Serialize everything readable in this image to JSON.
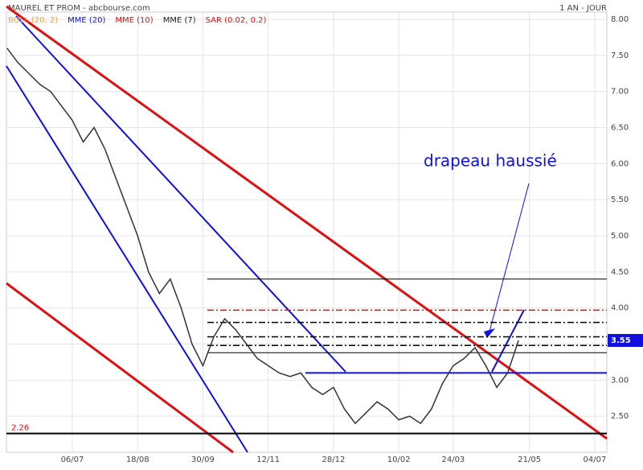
{
  "chart_data": {
    "type": "line",
    "title": "MAUREL ET PROM - abcbourse.com",
    "period": "1 AN - JOUR",
    "indicators": [
      {
        "name": "BOLL (20, 2)",
        "color": "#f0a030"
      },
      {
        "name": "MME (20)",
        "color": "#1010e0"
      },
      {
        "name": "MME (10)",
        "color": "#e01010"
      },
      {
        "name": "MME (7)",
        "color": "#222222"
      },
      {
        "name": "SAR (0.02, 0.2)",
        "color": "#e01010"
      }
    ],
    "categories": [
      null,
      null,
      null,
      null,
      null,
      null,
      "06/07",
      null,
      null,
      null,
      null,
      null,
      "18/08",
      null,
      null,
      null,
      null,
      null,
      "30/09",
      null,
      null,
      null,
      null,
      null,
      "12/11",
      null,
      null,
      null,
      null,
      null,
      "28/12",
      null,
      null,
      null,
      null,
      null,
      "10/02",
      null,
      null,
      null,
      null,
      "24/03",
      null,
      null,
      null,
      null,
      null,
      null,
      "21/05",
      null,
      null,
      null,
      null,
      null,
      "04/07"
    ],
    "series": [
      {
        "name": "MAUREL ET PROM",
        "color": "#333333",
        "values": [
          7.6,
          7.4,
          7.25,
          7.1,
          7.0,
          6.8,
          6.6,
          6.3,
          6.5,
          6.2,
          5.8,
          5.4,
          5.0,
          4.5,
          4.2,
          4.4,
          4.0,
          3.5,
          3.2,
          3.6,
          3.85,
          3.7,
          3.5,
          3.3,
          3.2,
          3.1,
          3.05,
          3.1,
          2.9,
          2.8,
          2.9,
          2.6,
          2.4,
          2.55,
          2.7,
          2.6,
          2.45,
          2.5,
          2.4,
          2.6,
          2.95,
          3.2,
          3.3,
          3.45,
          3.2,
          2.9,
          3.1,
          3.55,
          null,
          null,
          null,
          null,
          null,
          null,
          null
        ]
      }
    ],
    "levels": [
      {
        "value": 4.4,
        "color": "#000000",
        "dash": false
      },
      {
        "value": 3.97,
        "color": "#e01010",
        "dash": true
      },
      {
        "value": 3.8,
        "color": "#000000",
        "dash": true
      },
      {
        "value": 3.6,
        "color": "#000000",
        "dash": true
      },
      {
        "value": 3.48,
        "color": "#000000",
        "dash": true
      },
      {
        "value": 3.38,
        "color": "#000000",
        "dash": false
      },
      {
        "value": 3.1,
        "color": "#1010e0",
        "dash": false
      },
      {
        "value": 2.26,
        "color": "#000000",
        "dash": false,
        "label": "2.26"
      }
    ],
    "last_price": 3.55,
    "annotation": "drapeau haussié",
    "ylim": [
      2.0,
      8.1
    ],
    "yticks": [
      {
        "value": 2.5,
        "label": "2.50"
      },
      {
        "value": 3,
        "label": "3.00"
      },
      {
        "value": 3.5,
        "label": "3.50"
      },
      {
        "value": 4,
        "label": "4.00"
      },
      {
        "value": 4.5,
        "label": "4.50"
      },
      {
        "value": 5,
        "label": "5.00"
      },
      {
        "value": 5.5,
        "label": "5.50"
      },
      {
        "value": 6,
        "label": "6.00"
      },
      {
        "value": 6.5,
        "label": "6.50"
      },
      {
        "value": 7,
        "label": "7.00"
      },
      {
        "value": 7.5,
        "label": "7.50"
      },
      {
        "value": 8,
        "label": "8.00"
      }
    ],
    "grid": true
  }
}
